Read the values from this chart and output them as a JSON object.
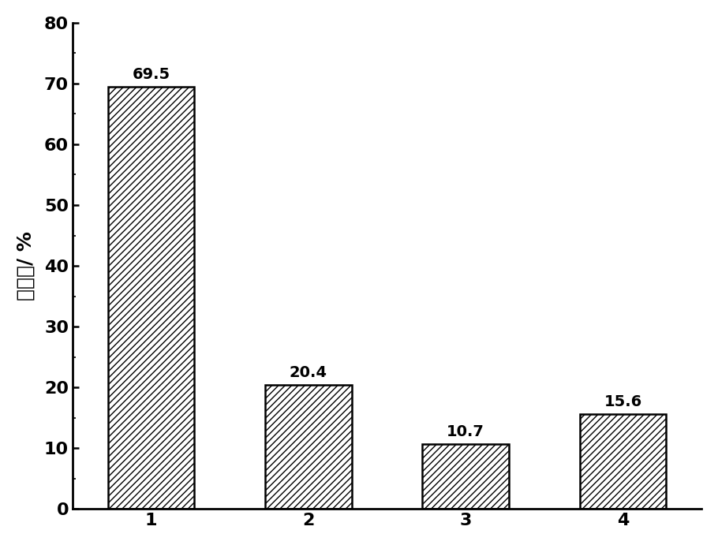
{
  "categories": [
    "1",
    "2",
    "3",
    "4"
  ],
  "values": [
    69.5,
    20.4,
    10.7,
    15.6
  ],
  "ylabel": "脱硫率/ %",
  "ylim": [
    0,
    80
  ],
  "yticks": [
    0,
    10,
    20,
    30,
    40,
    50,
    60,
    70,
    80
  ],
  "bar_color": "#ffffff",
  "bar_edgecolor": "#000000",
  "hatch": "////",
  "tick_fontsize": 16,
  "ylabel_fontsize": 18,
  "bar_width": 0.55,
  "background_color": "#ffffff",
  "annotation_fontsize": 14,
  "annotation_fontweight": "bold",
  "spine_linewidth": 2.0
}
